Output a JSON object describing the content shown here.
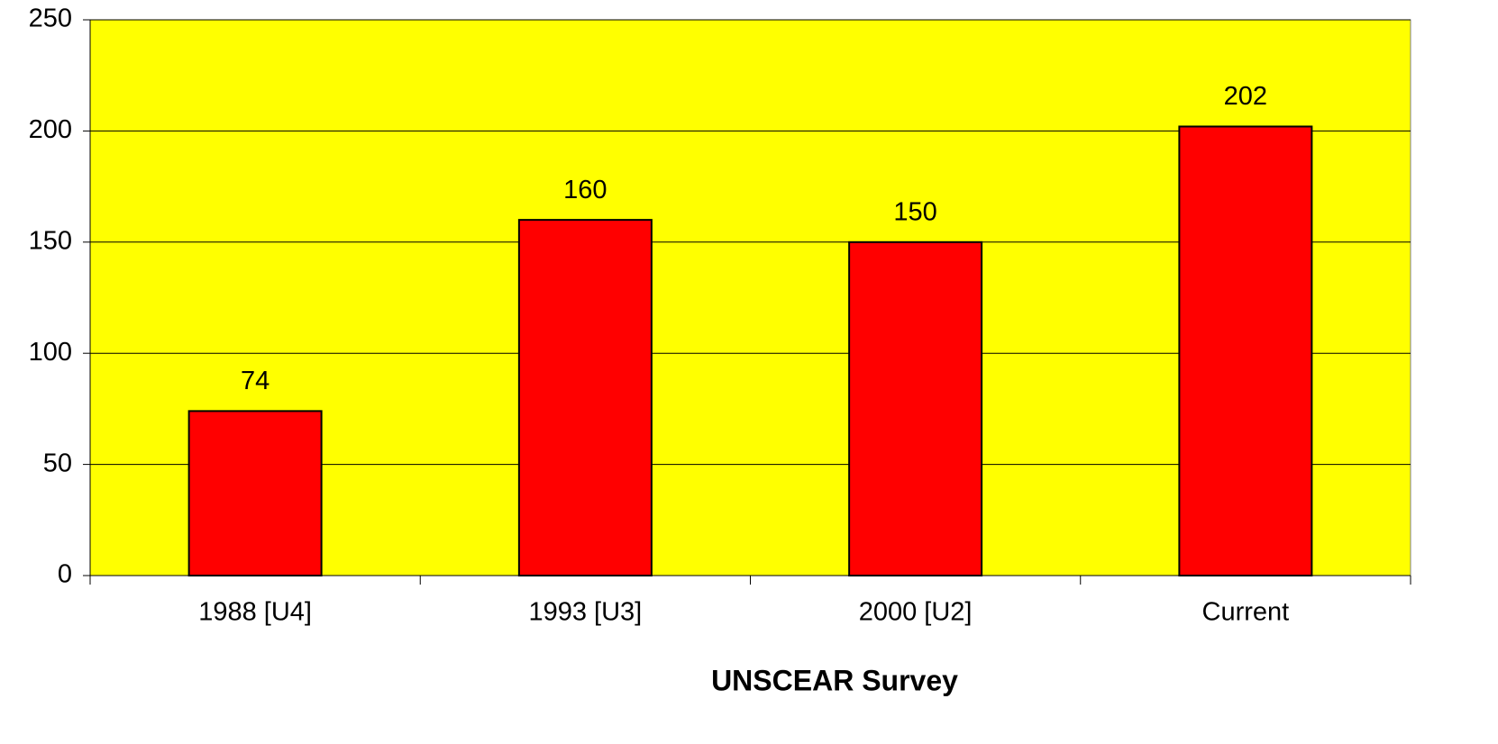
{
  "chart_data": {
    "type": "bar",
    "x_label": "UNSCEAR Survey",
    "categories": [
      "1988 [U4]",
      "1993 [U3]",
      "2000 [U2]",
      "Current"
    ],
    "values": [
      74,
      160,
      150,
      202
    ],
    "color": "#ff0000",
    "plot_background": "#ffff00",
    "ylim": [
      0,
      250
    ],
    "yticks": [
      0,
      50,
      100,
      150,
      200,
      250
    ],
    "grid": true
  }
}
